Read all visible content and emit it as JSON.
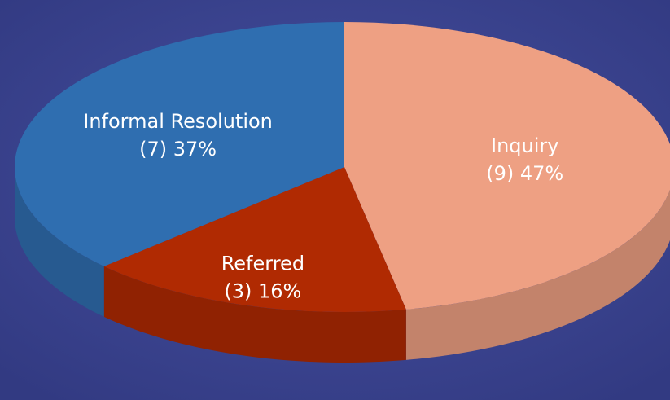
{
  "chart_data": {
    "type": "pie",
    "categories": [
      "Inquiry",
      "Referred",
      "Informal Resolution"
    ],
    "values": [
      47,
      16,
      37
    ],
    "counts": [
      9,
      3,
      7
    ],
    "value_labels": [
      "(9) 47%",
      "(3) 16%",
      "(7) 37%"
    ],
    "colors": [
      "#eea083",
      "#b02a02",
      "#2f6eb0"
    ]
  }
}
